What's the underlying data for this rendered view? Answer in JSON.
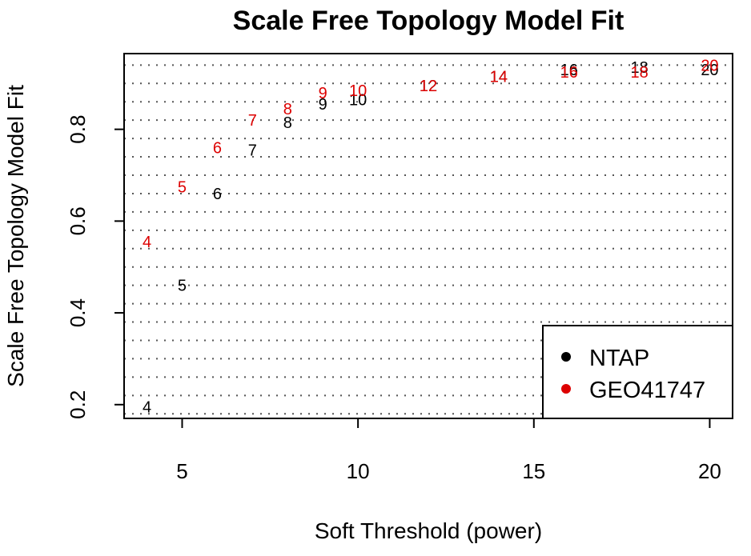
{
  "chart_data": {
    "type": "scatter",
    "title": "Scale Free Topology Model Fit",
    "xlabel": "Soft Threshold (power)",
    "ylabel": "Scale Free Topology Model Fit",
    "xlim": [
      3.35,
      20.65
    ],
    "ylim": [
      0.17,
      0.965
    ],
    "xticks": [
      5,
      10,
      15,
      20
    ],
    "yticks": [
      0.2,
      0.4,
      0.6,
      0.8
    ],
    "xtick_labels": [
      "5",
      "10",
      "15",
      "20"
    ],
    "ytick_labels": [
      "0.2",
      "0.4",
      "0.6",
      "0.8"
    ],
    "grid": "horizontal dotted",
    "legend_position": "bottom-right",
    "series": [
      {
        "name": "NTAP",
        "color": "#000000",
        "x": [
          4,
          5,
          6,
          7,
          8,
          9,
          10,
          12,
          14,
          16,
          18,
          20
        ],
        "y": [
          0.195,
          0.46,
          0.66,
          0.755,
          0.815,
          0.855,
          0.865,
          0.895,
          0.915,
          0.93,
          0.935,
          0.93
        ],
        "labels": [
          "4",
          "5",
          "6",
          "7",
          "8",
          "9",
          "10",
          "12",
          "14",
          "16",
          "18",
          "20"
        ]
      },
      {
        "name": "GEO41747",
        "color": "#dd0000",
        "x": [
          4,
          5,
          6,
          7,
          8,
          9,
          10,
          12,
          14,
          16,
          18,
          20
        ],
        "y": [
          0.555,
          0.675,
          0.76,
          0.82,
          0.845,
          0.88,
          0.885,
          0.895,
          0.915,
          0.925,
          0.925,
          0.94
        ],
        "labels": [
          "4",
          "5",
          "6",
          "7",
          "8",
          "9",
          "10",
          "12",
          "14",
          "16",
          "18",
          "20"
        ]
      }
    ]
  }
}
